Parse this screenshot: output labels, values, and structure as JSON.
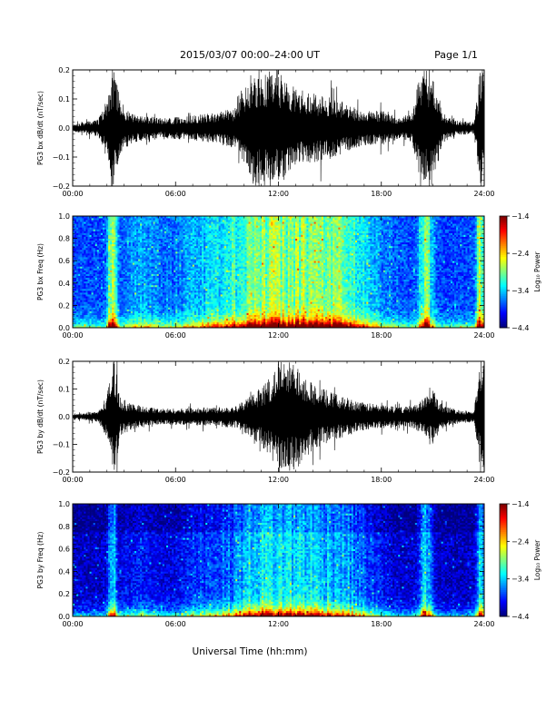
{
  "header": {
    "title": "2015/03/07  00:00–24:00 UT",
    "page": "Page 1/1"
  },
  "xlabel": "Universal Time (hh:mm)",
  "chart_data": [
    {
      "type": "line",
      "ylabel": "PG3 bx dB/dt (nT/sec)",
      "ylim": [
        -0.2,
        0.2
      ],
      "yticks": [
        "0.2",
        "0.1",
        "0.0",
        "−0.1",
        "−0.2"
      ],
      "xlim": [
        "00:00",
        "24:00"
      ],
      "xticks": [
        "00:00",
        "06:00",
        "12:00",
        "18:00",
        "24:00"
      ],
      "envelope": {
        "hours": [
          0,
          1.5,
          2.0,
          2.4,
          2.8,
          3.5,
          5,
          6.5,
          8,
          9.5,
          10.5,
          11.5,
          12,
          13,
          14,
          15,
          16,
          17,
          18,
          19,
          19.8,
          20.3,
          21,
          21.6,
          22.5,
          23.4,
          23.8,
          24
        ],
        "amplitude": [
          0.012,
          0.03,
          0.1,
          0.22,
          0.09,
          0.05,
          0.035,
          0.04,
          0.05,
          0.07,
          0.2,
          0.2,
          0.2,
          0.14,
          0.12,
          0.11,
          0.08,
          0.06,
          0.06,
          0.04,
          0.05,
          0.2,
          0.2,
          0.05,
          0.025,
          0.02,
          0.22,
          0.2
        ]
      }
    },
    {
      "type": "heatmap",
      "ylabel": "PG3 bx Freq (Hz)",
      "ylim": [
        0.0,
        1.0
      ],
      "yticks": [
        "1.0",
        "0.8",
        "0.6",
        "0.4",
        "0.2",
        "0.0"
      ],
      "xlim": [
        "00:00",
        "24:00"
      ],
      "xticks": [
        "00:00",
        "06:00",
        "12:00",
        "18:00",
        "24:00"
      ],
      "colorbar": {
        "label": "Log₁₀ Power",
        "range": [
          -4.4,
          -1.4
        ],
        "ticks": [
          "−1.4",
          "−2.4",
          "−3.4",
          "−4.4"
        ]
      }
    },
    {
      "type": "line",
      "ylabel": "PG3 by dB/dt (nT/sec)",
      "ylim": [
        -0.2,
        0.2
      ],
      "yticks": [
        "0.2",
        "0.1",
        "0.0",
        "−0.1",
        "−0.2"
      ],
      "xlim": [
        "00:00",
        "24:00"
      ],
      "xticks": [
        "00:00",
        "06:00",
        "12:00",
        "18:00",
        "24:00"
      ],
      "envelope": {
        "hours": [
          0,
          1.5,
          2.0,
          2.4,
          2.8,
          3.5,
          5,
          6.5,
          8,
          9.5,
          10.5,
          11.5,
          12,
          13,
          14,
          15,
          16,
          17,
          18,
          19,
          19.8,
          20.3,
          21,
          21.6,
          22.5,
          23.4,
          23.8,
          24
        ],
        "amplitude": [
          0.008,
          0.02,
          0.08,
          0.22,
          0.07,
          0.045,
          0.03,
          0.03,
          0.035,
          0.04,
          0.08,
          0.14,
          0.2,
          0.2,
          0.12,
          0.09,
          0.07,
          0.05,
          0.045,
          0.035,
          0.04,
          0.06,
          0.1,
          0.04,
          0.025,
          0.02,
          0.21,
          0.18
        ]
      }
    },
    {
      "type": "heatmap",
      "ylabel": "PG3 by Freq (Hz)",
      "ylim": [
        0.0,
        1.0
      ],
      "yticks": [
        "1.0",
        "0.8",
        "0.6",
        "0.4",
        "0.2",
        "0.0"
      ],
      "xlim": [
        "00:00",
        "24:00"
      ],
      "xticks": [
        "00:00",
        "06:00",
        "12:00",
        "18:00",
        "24:00"
      ],
      "colorbar": {
        "label": "Log₁₀ Power",
        "range": [
          -4.4,
          -1.4
        ],
        "ticks": [
          "−1.4",
          "−2.4",
          "−3.4",
          "−4.4"
        ]
      }
    }
  ]
}
